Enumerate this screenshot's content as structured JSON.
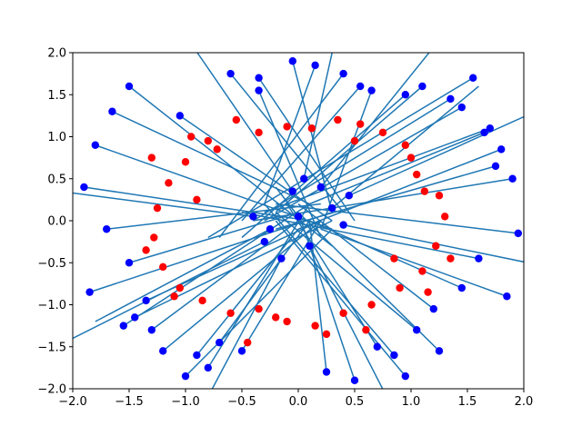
{
  "chart_data": {
    "type": "scatter",
    "title": "",
    "xlabel": "",
    "ylabel": "",
    "xlim": [
      -2.0,
      2.0
    ],
    "ylim": [
      -2.0,
      2.0
    ],
    "xticks": [
      "−2.0",
      "−1.5",
      "−1.0",
      "−0.5",
      "0.0",
      "0.5",
      "1.0",
      "1.5",
      "2.0"
    ],
    "yticks": [
      "−2.0",
      "−1.5",
      "−1.0",
      "−0.5",
      "0.0",
      "0.5",
      "1.0",
      "1.5",
      "2.0"
    ],
    "grid": false,
    "legend": "none",
    "colors": {
      "red_points": "#ff0000",
      "blue_points": "#0000ff",
      "segments": "#1f77b4"
    },
    "red_points": {
      "description_of_pattern": "ring of points at radius ~1.0-1.3 around origin",
      "x": [
        1.0,
        1.12,
        0.95,
        0.75,
        0.55,
        0.35,
        0.12,
        -0.1,
        -0.35,
        -0.55,
        -0.8,
        -1.0,
        -1.15,
        -1.25,
        -1.28,
        -1.2,
        -1.05,
        -0.85,
        -0.6,
        -0.35,
        -0.1,
        0.15,
        0.4,
        0.65,
        0.9,
        1.1,
        1.22,
        1.3,
        1.25,
        1.05,
        -0.72,
        -0.9,
        -1.3,
        -1.35,
        0.85,
        0.6,
        0.25,
        -0.2,
        -0.45,
        1.35,
        0.5,
        -1.1,
        -0.95,
        1.15
      ],
      "y": [
        0.75,
        0.35,
        0.9,
        1.05,
        1.15,
        1.2,
        1.1,
        1.12,
        1.05,
        1.2,
        0.95,
        0.7,
        0.45,
        0.15,
        -0.2,
        -0.55,
        -0.8,
        -0.95,
        -1.1,
        -1.05,
        -1.2,
        -1.25,
        -1.1,
        -1.0,
        -0.8,
        -0.6,
        -0.3,
        0.05,
        0.3,
        0.55,
        0.85,
        0.25,
        0.75,
        -0.35,
        -0.45,
        -1.3,
        -1.35,
        -1.15,
        -1.45,
        -0.45,
        0.95,
        -0.9,
        1.0,
        -0.85
      ]
    },
    "blue_points": {
      "description_of_pattern": "points scattered inside radius ~0.6 and outside radius ~1.3, each joined to a line segment",
      "x": [
        0.3,
        -0.25,
        0.1,
        -0.05,
        0.4,
        -0.4,
        0.05,
        -0.15,
        0.2,
        -0.3,
        0.45,
        0.0,
        1.55,
        1.7,
        1.8,
        1.9,
        1.95,
        1.6,
        1.45,
        1.2,
        1.05,
        -1.5,
        -1.65,
        -1.8,
        -1.9,
        -1.7,
        -1.5,
        -1.35,
        -1.55,
        -1.45,
        0.4,
        0.55,
        0.15,
        -0.05,
        -0.35,
        -0.6,
        0.85,
        0.95,
        1.25,
        -1.0,
        -0.8,
        -1.2,
        1.35,
        1.65,
        1.85,
        -1.3,
        -1.85,
        0.7,
        -0.5,
        -0.9,
        0.95,
        1.45,
        1.75,
        0.5,
        0.25,
        -0.35,
        -1.05,
        1.1,
        -0.7,
        0.65
      ],
      "y": [
        0.15,
        -0.1,
        -0.3,
        0.35,
        -0.05,
        0.05,
        0.5,
        -0.45,
        0.4,
        -0.25,
        0.3,
        0.05,
        1.7,
        1.1,
        0.85,
        0.5,
        -0.15,
        -0.45,
        -0.8,
        -1.05,
        -1.3,
        1.6,
        1.3,
        0.9,
        0.4,
        -0.1,
        -0.5,
        -0.95,
        -1.25,
        -1.15,
        1.75,
        1.6,
        1.85,
        1.9,
        1.7,
        1.75,
        -1.6,
        -1.85,
        -1.55,
        -1.85,
        -1.75,
        -1.55,
        1.45,
        1.05,
        -0.9,
        -1.3,
        -0.85,
        -1.5,
        -1.55,
        -1.6,
        1.5,
        1.35,
        0.65,
        -1.9,
        -1.8,
        1.55,
        1.25,
        1.6,
        -1.45,
        1.55
      ]
    },
    "segments": {
      "description_of_pattern": "each blue point has a line segment radiating outward, many extending beyond the axes",
      "from_x": [
        0.3,
        -0.25,
        0.1,
        -0.05,
        0.4,
        -0.4,
        0.05,
        -0.15,
        0.2,
        -0.3,
        0.45,
        0.0,
        1.55,
        1.7,
        1.8,
        1.9,
        1.95,
        1.6,
        1.45,
        1.2,
        1.05,
        -1.5,
        -1.65,
        -1.8,
        -1.9,
        -1.7,
        -1.5,
        -1.35,
        -1.55,
        -1.45,
        0.4,
        0.55,
        0.15,
        -0.05,
        -0.35,
        -0.6,
        0.85,
        0.95,
        1.25,
        -1.0,
        -0.8,
        -1.2,
        1.35,
        1.65,
        1.85,
        -1.3,
        -1.85,
        0.7,
        -0.5,
        -0.9,
        0.95,
        1.45,
        1.75,
        0.5,
        0.25,
        -0.35,
        -1.05,
        1.1,
        -0.7,
        0.65
      ],
      "from_y": [
        0.15,
        -0.1,
        -0.3,
        0.35,
        -0.05,
        0.05,
        0.5,
        -0.45,
        0.4,
        -0.25,
        0.3,
        0.05,
        1.7,
        1.1,
        0.85,
        0.5,
        -0.15,
        -0.45,
        -0.8,
        -1.05,
        -1.3,
        1.6,
        1.3,
        0.9,
        0.4,
        -0.1,
        -0.5,
        -0.95,
        -1.25,
        -1.15,
        1.75,
        1.6,
        1.85,
        1.9,
        1.7,
        1.75,
        -1.6,
        -1.85,
        -1.55,
        -1.85,
        -1.75,
        -1.55,
        1.45,
        1.05,
        -0.9,
        -1.3,
        -0.85,
        -1.5,
        -1.55,
        -1.6,
        1.5,
        1.35,
        0.65,
        -1.9,
        -1.8,
        1.55,
        1.25,
        1.6,
        -1.45,
        1.55
      ],
      "to_x": [
        1.6,
        -1.8,
        0.9,
        -1.1,
        2.4,
        -2.4,
        0.4,
        -1.0,
        1.4,
        -2.0,
        2.6,
        -0.2,
        -0.8,
        -0.3,
        0.0,
        -0.4,
        -0.2,
        -0.5,
        0.1,
        0.0,
        -0.2,
        0.3,
        0.1,
        0.3,
        0.1,
        0.2,
        0.0,
        0.2,
        0.1,
        0.3,
        -0.7,
        -0.5,
        -0.3,
        0.3,
        0.5,
        0.4,
        -0.3,
        -0.2,
        0.0,
        0.3,
        0.1,
        0.2,
        -0.4,
        0.1,
        0.2,
        0.0,
        0.3,
        -0.1,
        0.2,
        0.0,
        -0.5,
        -0.3,
        -0.2,
        0.0,
        0.1,
        0.2,
        0.3,
        -0.2,
        0.1,
        0.2
      ],
      "to_y": [
        1.6,
        -1.2,
        -2.4,
        2.4,
        -0.6,
        0.4,
        2.6,
        -2.6,
        2.4,
        -1.4,
        1.6,
        0.4,
        -0.2,
        0.1,
        -0.1,
        0.0,
        0.2,
        0.1,
        0.0,
        0.2,
        0.1,
        -0.3,
        0.2,
        -0.1,
        0.0,
        0.2,
        0.1,
        0.0,
        0.2,
        0.0,
        -0.2,
        0.0,
        0.2,
        0.1,
        0.0,
        0.1,
        0.2,
        0.0,
        0.1,
        -0.1,
        0.2,
        0.0,
        0.0,
        0.2,
        -0.1,
        0.0,
        0.1,
        0.2,
        0.0,
        -0.1,
        -0.2,
        0.0,
        -0.1,
        0.1,
        0.0,
        -0.2,
        0.0,
        0.1,
        0.0,
        -0.1
      ]
    }
  }
}
